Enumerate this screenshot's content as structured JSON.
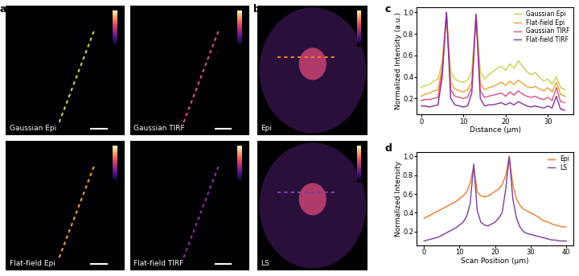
{
  "panel_labels": [
    "a",
    "b",
    "c",
    "d"
  ],
  "image_panels": {
    "a": [
      "Gaussian Epi",
      "Gaussian TIRF",
      "Flat-field Epi",
      "Flat-field TIRF"
    ],
    "b": [
      "Epi",
      "LS"
    ]
  },
  "chart_data": [
    {
      "type": "line",
      "xlabel": "Distance (µm)",
      "ylabel": "Normalized Intensity (a.u.)",
      "xlim": [
        -1,
        36
      ],
      "ylim": [
        0.05,
        1.05
      ],
      "xticks": [
        0,
        10,
        20,
        30
      ],
      "yticks": [
        0.2,
        0.4,
        0.6,
        0.8,
        1.0
      ],
      "legend": "upper right",
      "x": [
        0,
        1,
        2,
        3,
        4,
        5,
        6,
        7,
        8,
        9,
        10,
        11,
        12,
        13,
        14,
        15,
        16,
        17,
        18,
        19,
        20,
        21,
        22,
        23,
        24,
        25,
        26,
        27,
        28,
        29,
        30,
        31,
        32,
        33,
        34
      ],
      "series": [
        {
          "name": "Gaussian Epi",
          "color": "#c8d24a",
          "values": [
            0.3,
            0.32,
            0.33,
            0.36,
            0.38,
            0.55,
            1.0,
            0.45,
            0.38,
            0.36,
            0.35,
            0.37,
            0.45,
            0.98,
            0.45,
            0.38,
            0.42,
            0.45,
            0.48,
            0.5,
            0.46,
            0.52,
            0.48,
            0.55,
            0.5,
            0.45,
            0.42,
            0.44,
            0.4,
            0.36,
            0.38,
            0.33,
            0.4,
            0.3,
            0.28
          ]
        },
        {
          "name": "Flat-field Epi",
          "color": "#f0a030",
          "values": [
            0.22,
            0.24,
            0.25,
            0.27,
            0.28,
            0.5,
            1.0,
            0.35,
            0.29,
            0.27,
            0.26,
            0.28,
            0.36,
            0.98,
            0.34,
            0.28,
            0.3,
            0.31,
            0.33,
            0.35,
            0.32,
            0.36,
            0.33,
            0.37,
            0.34,
            0.31,
            0.3,
            0.31,
            0.29,
            0.27,
            0.3,
            0.26,
            0.35,
            0.24,
            0.22
          ]
        },
        {
          "name": "Gaussian TIRF",
          "color": "#e0507a",
          "values": [
            0.18,
            0.19,
            0.19,
            0.2,
            0.21,
            0.45,
            1.0,
            0.28,
            0.22,
            0.21,
            0.2,
            0.21,
            0.3,
            0.98,
            0.27,
            0.21,
            0.22,
            0.23,
            0.24,
            0.25,
            0.22,
            0.26,
            0.23,
            0.27,
            0.24,
            0.22,
            0.21,
            0.22,
            0.2,
            0.19,
            0.21,
            0.18,
            0.3,
            0.17,
            0.16
          ]
        },
        {
          "name": "Flat-field TIRF",
          "color": "#8a2ea0",
          "values": [
            0.13,
            0.13,
            0.12,
            0.13,
            0.14,
            0.4,
            1.0,
            0.2,
            0.14,
            0.13,
            0.12,
            0.13,
            0.25,
            0.98,
            0.2,
            0.13,
            0.14,
            0.14,
            0.15,
            0.16,
            0.14,
            0.16,
            0.14,
            0.17,
            0.15,
            0.13,
            0.12,
            0.13,
            0.12,
            0.11,
            0.13,
            0.11,
            0.22,
            0.1,
            0.09
          ]
        }
      ]
    },
    {
      "type": "line",
      "xlabel": "Scan Position (µm)",
      "ylabel": "Normalized Intensity",
      "xlim": [
        -2,
        42
      ],
      "ylim": [
        0.05,
        1.05
      ],
      "xticks": [
        0,
        10,
        20,
        30,
        40
      ],
      "yticks": [
        0.2,
        0.4,
        0.6,
        0.8,
        1.0
      ],
      "legend": "upper right",
      "x": [
        0,
        1,
        2,
        3,
        4,
        5,
        6,
        7,
        8,
        9,
        10,
        11,
        12,
        13,
        14,
        15,
        16,
        17,
        18,
        19,
        20,
        21,
        22,
        23,
        24,
        25,
        26,
        27,
        28,
        29,
        30,
        31,
        32,
        33,
        34,
        35,
        36,
        37,
        38,
        39,
        40
      ],
      "series": [
        {
          "name": "Epi",
          "color": "#f07a2a",
          "values": [
            0.34,
            0.36,
            0.38,
            0.4,
            0.42,
            0.44,
            0.46,
            0.48,
            0.5,
            0.52,
            0.55,
            0.58,
            0.62,
            0.72,
            0.9,
            0.62,
            0.58,
            0.57,
            0.58,
            0.6,
            0.63,
            0.65,
            0.7,
            0.8,
            1.0,
            0.7,
            0.55,
            0.48,
            0.44,
            0.42,
            0.4,
            0.38,
            0.36,
            0.33,
            0.31,
            0.3,
            0.28,
            0.27,
            0.26,
            0.25,
            0.25
          ]
        },
        {
          "name": "LS",
          "color": "#7b3fa0",
          "values": [
            0.1,
            0.11,
            0.12,
            0.13,
            0.14,
            0.16,
            0.18,
            0.2,
            0.22,
            0.24,
            0.27,
            0.3,
            0.36,
            0.5,
            0.92,
            0.42,
            0.3,
            0.27,
            0.26,
            0.28,
            0.3,
            0.34,
            0.4,
            0.65,
            1.0,
            0.55,
            0.35,
            0.25,
            0.2,
            0.18,
            0.17,
            0.16,
            0.15,
            0.14,
            0.13,
            0.12,
            0.11,
            0.11,
            0.1,
            0.1,
            0.1
          ]
        }
      ]
    }
  ]
}
